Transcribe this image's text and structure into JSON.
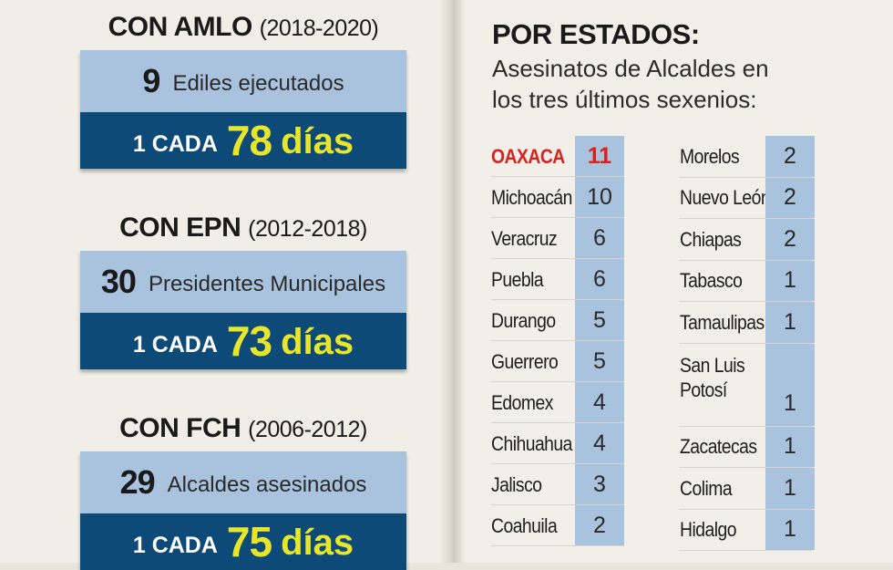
{
  "periods": [
    {
      "heading": "CON AMLO",
      "years": "(2018-2020)",
      "count": "9",
      "label": "Ediles ejecutados",
      "rate_prefix": "1 CADA",
      "rate_number": "78",
      "rate_unit": "días"
    },
    {
      "heading": "CON EPN",
      "years": "(2012-2018)",
      "count": "30",
      "label": "Presidentes Municipales",
      "rate_prefix": "1 CADA",
      "rate_number": "73",
      "rate_unit": "días"
    },
    {
      "heading": "CON FCH",
      "years": "(2006-2012)",
      "count": "29",
      "label": "Alcaldes asesinados",
      "rate_prefix": "1 CADA",
      "rate_number": "75",
      "rate_unit": "días"
    }
  ],
  "states_section": {
    "title": "POR ESTADOS:",
    "subtitle": "Asesinatos de Alcaldes en los tres últimos sexenios:",
    "highlight_color": "#d62320",
    "left_column": [
      {
        "name": "OAXACA",
        "value": "11",
        "highlight": true
      },
      {
        "name": "Michoacán",
        "value": "10"
      },
      {
        "name": "Veracruz",
        "value": "6"
      },
      {
        "name": "Puebla",
        "value": "6"
      },
      {
        "name": "Durango",
        "value": "5"
      },
      {
        "name": "Guerrero",
        "value": "5"
      },
      {
        "name": "Edomex",
        "value": "4"
      },
      {
        "name": "Chihuahua",
        "value": "4"
      },
      {
        "name": "Jalisco",
        "value": "3"
      },
      {
        "name": "Coahuila",
        "value": "2"
      }
    ],
    "right_column": [
      {
        "name": "Morelos",
        "value": "2"
      },
      {
        "name": "Nuevo León",
        "value": "2"
      },
      {
        "name": "Chiapas",
        "value": "2"
      },
      {
        "name": "Tabasco",
        "value": "1"
      },
      {
        "name": "Tamaulipas",
        "value": "1"
      },
      {
        "name": "San Luis\nPotosí",
        "value": "1"
      },
      {
        "name": "Zacatecas",
        "value": "1"
      },
      {
        "name": "Colima",
        "value": "1"
      },
      {
        "name": "Hidalgo",
        "value": "1"
      }
    ]
  },
  "colors": {
    "count_box": "#a9c2de",
    "rate_box": "#0d4a78",
    "rate_highlight": "#e7e62b"
  }
}
